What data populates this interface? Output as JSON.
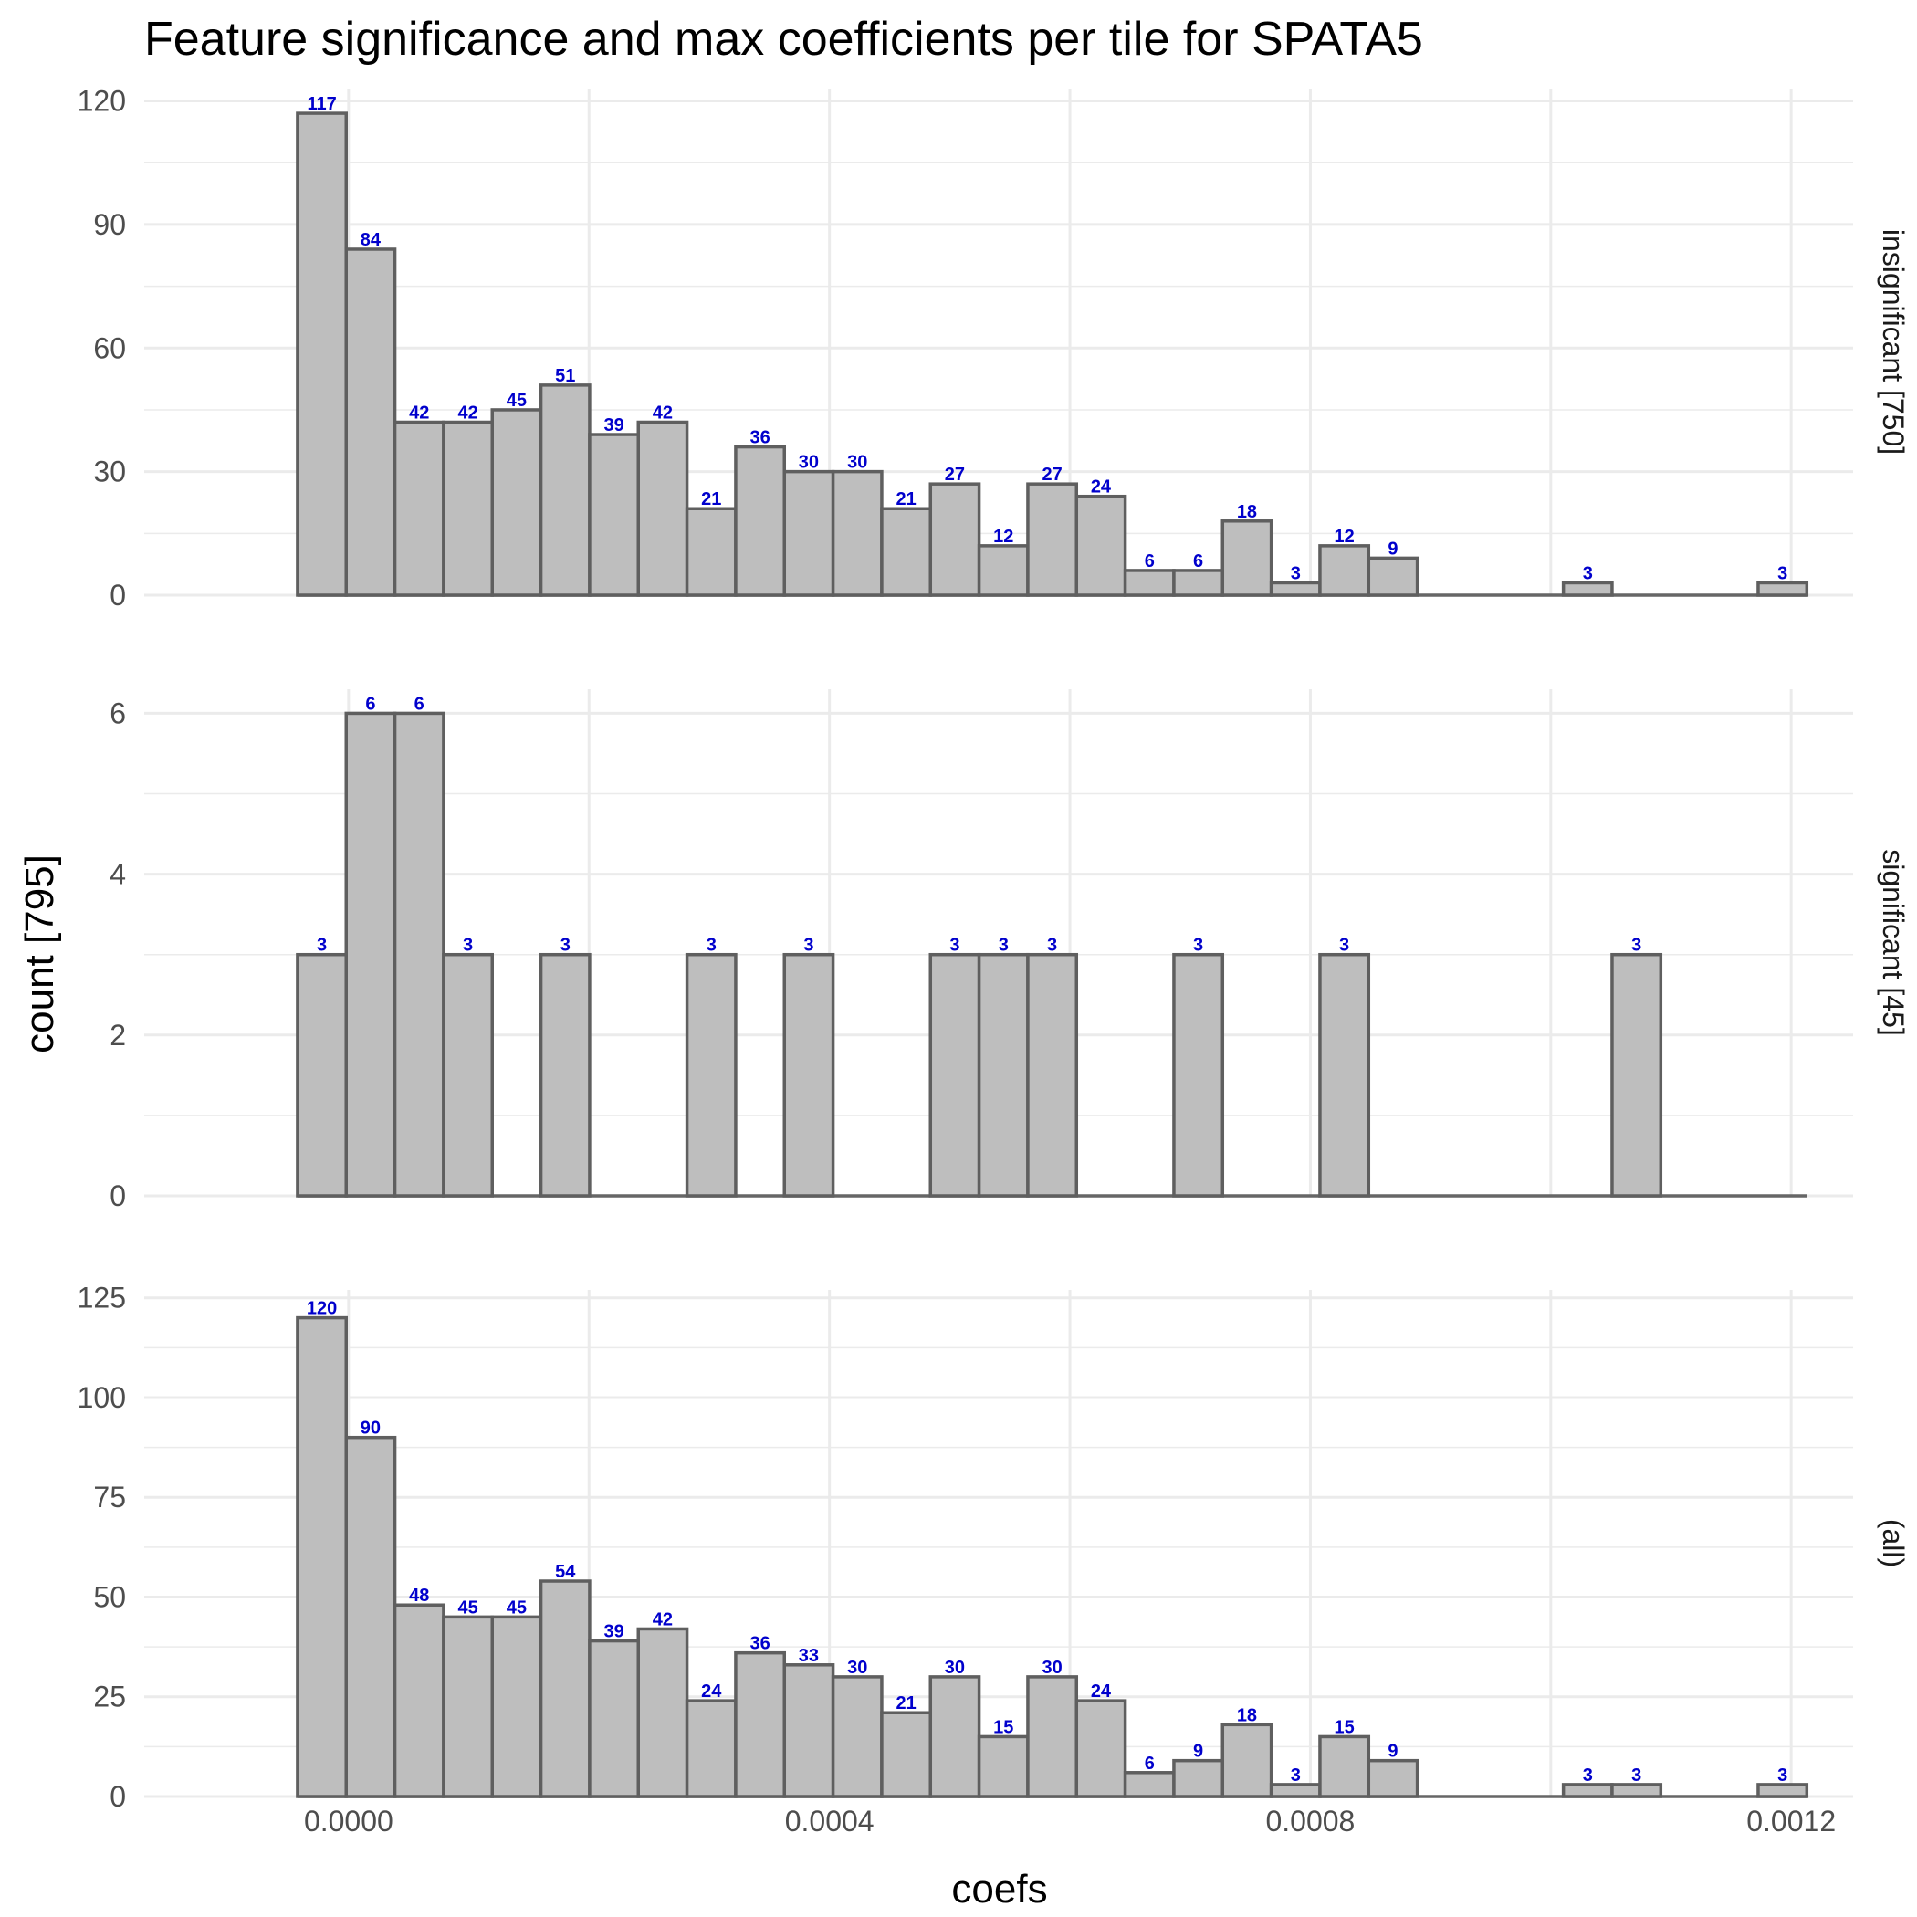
{
  "chart_data": {
    "type": "bar",
    "title": "Feature significance and max coefficients per tile for SPATA5",
    "xlabel": "coefs",
    "ylabel": "count [795]",
    "x_ticks": [
      0.0,
      0.0004,
      0.0008,
      0.0012
    ],
    "x_tick_labels": [
      "0.0000",
      "0.0004",
      "0.0008",
      "0.0012"
    ],
    "xlim": [
      -0.00017,
      0.0012515
    ],
    "bin_width": 4.05e-05,
    "first_bin_left": -4.25e-05,
    "bin_count": 31,
    "grid": true,
    "panels": [
      {
        "strip": "insignificant [750]",
        "ylim": [
          0,
          123
        ],
        "y_ticks": [
          0,
          30,
          60,
          90,
          120
        ],
        "y_tick_labels": [
          "0",
          "30",
          "60",
          "90",
          "120"
        ],
        "values": [
          117,
          84,
          42,
          42,
          45,
          51,
          39,
          42,
          21,
          36,
          30,
          30,
          21,
          27,
          12,
          27,
          24,
          6,
          6,
          18,
          3,
          12,
          9,
          0,
          0,
          0,
          3,
          0,
          0,
          0,
          3
        ]
      },
      {
        "strip": "significant [45]",
        "ylim": [
          0,
          6.3
        ],
        "y_ticks": [
          0,
          2,
          4,
          6
        ],
        "y_tick_labels": [
          "0",
          "2",
          "4",
          "6"
        ],
        "values": [
          3,
          6,
          6,
          3,
          0,
          3,
          0,
          0,
          3,
          0,
          3,
          0,
          0,
          3,
          3,
          3,
          0,
          0,
          3,
          0,
          0,
          3,
          0,
          0,
          0,
          0,
          0,
          3,
          0,
          0,
          0
        ]
      },
      {
        "strip": "(all)",
        "ylim": [
          0,
          127
        ],
        "y_ticks": [
          0,
          25,
          50,
          75,
          100,
          125
        ],
        "y_tick_labels": [
          "0",
          "25",
          "50",
          "75",
          "100",
          "125"
        ],
        "values": [
          120,
          90,
          48,
          45,
          45,
          54,
          39,
          42,
          24,
          36,
          33,
          30,
          21,
          30,
          15,
          30,
          24,
          6,
          9,
          18,
          3,
          15,
          9,
          0,
          0,
          0,
          3,
          3,
          0,
          0,
          3
        ]
      }
    ]
  }
}
